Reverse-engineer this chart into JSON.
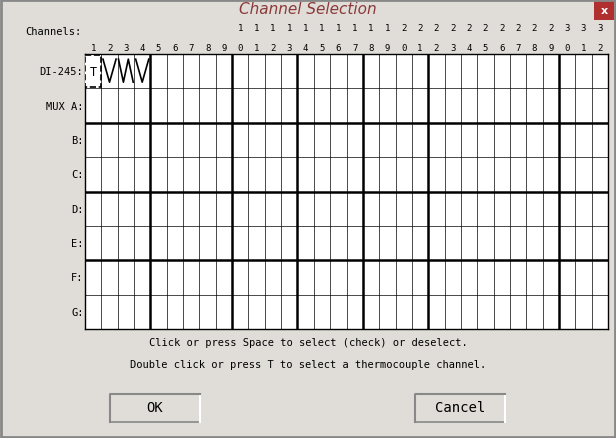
{
  "title": "Channel Selection",
  "bg_color": "#e0ddd8",
  "grid_bg": "#ffffff",
  "close_btn_color": "#b03030",
  "row_labels": [
    "DI-245",
    "MUX A",
    "B",
    "C",
    "D",
    "E",
    "F",
    "G"
  ],
  "col_top_labels_row1": [
    " ",
    " ",
    " ",
    " ",
    " ",
    " ",
    " ",
    " ",
    " ",
    "1",
    "1",
    "1",
    "1",
    "1",
    "1",
    "1",
    "1",
    "1",
    "1",
    "2",
    "2",
    "2",
    "2",
    "2",
    "2",
    "2",
    "2",
    "2",
    "2",
    "3",
    "3",
    "3"
  ],
  "col_top_labels_row2": [
    "1",
    "2",
    "3",
    "4",
    "5",
    "6",
    "7",
    "8",
    "9",
    "0",
    "1",
    "2",
    "3",
    "4",
    "5",
    "6",
    "7",
    "8",
    "9",
    "0",
    "1",
    "2",
    "3",
    "4",
    "5",
    "6",
    "7",
    "8",
    "9",
    "0",
    "1",
    "2"
  ],
  "num_cols": 32,
  "num_rows": 8,
  "thick_col_indices": [
    4,
    9,
    13,
    17,
    21,
    29
  ],
  "thick_row_indices": [
    2,
    4,
    6
  ],
  "footer_line1": "Click or press Space to select (check) or deselect.",
  "footer_line2": "Double click or press T to select a thermocouple channel.",
  "ok_label": "OK",
  "cancel_label": "Cancel",
  "text_color": "#000000",
  "title_color": "#8b3a3a",
  "mono_font": "monospace",
  "title_fontsize": 11,
  "label_fontsize": 7.5,
  "footer_fontsize": 7.5,
  "btn_fontsize": 10,
  "header_fontsize": 6.5
}
